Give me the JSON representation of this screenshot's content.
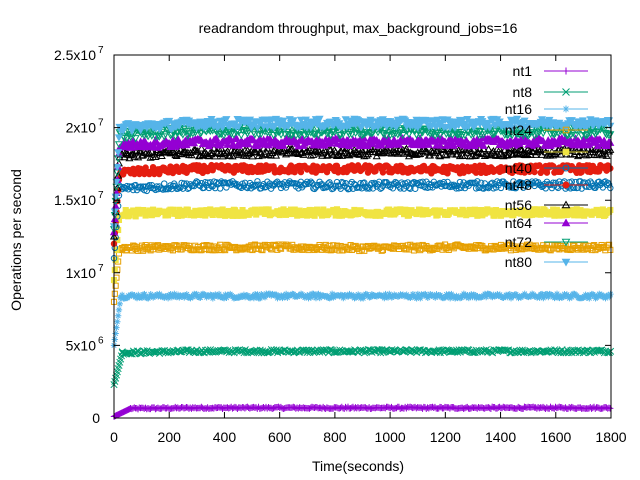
{
  "chart_data": {
    "type": "scatter",
    "title": "readrandom throughput, max_background_jobs=16",
    "xlabel": "Time(seconds)",
    "ylabel": "Operations per second",
    "xlim": [
      0,
      1800
    ],
    "ylim": [
      0,
      25000000
    ],
    "x_ticks": [
      {
        "value": 0,
        "label": "0"
      },
      {
        "value": 200,
        "label": "200"
      },
      {
        "value": 400,
        "label": "400"
      },
      {
        "value": 600,
        "label": "600"
      },
      {
        "value": 800,
        "label": "800"
      },
      {
        "value": 1000,
        "label": "1000"
      },
      {
        "value": 1200,
        "label": "1200"
      },
      {
        "value": 1400,
        "label": "1400"
      },
      {
        "value": 1600,
        "label": "1600"
      },
      {
        "value": 1800,
        "label": "1800"
      }
    ],
    "y_ticks": [
      {
        "value": 0,
        "base": "0",
        "exp": ""
      },
      {
        "value": 5000000,
        "base": "5x10",
        "exp": "6"
      },
      {
        "value": 10000000,
        "base": "1x10",
        "exp": "7"
      },
      {
        "value": 15000000,
        "base": "1.5x10",
        "exp": "7"
      },
      {
        "value": 20000000,
        "base": "2x10",
        "exp": "7"
      },
      {
        "value": 25000000,
        "base": "2.5x10",
        "exp": "7"
      }
    ],
    "grid": false,
    "legend_position": "top-right",
    "series": [
      {
        "name": "nt1",
        "color": "#9400d3",
        "marker": "plus",
        "steady": 700000,
        "ramp_end": 60,
        "x": [
          0,
          60,
          300,
          600,
          900,
          1200,
          1500,
          1800
        ],
        "y": [
          100000,
          650000,
          700000,
          700000,
          700000,
          700000,
          700000,
          700000
        ]
      },
      {
        "name": "nt8",
        "color": "#009e73",
        "marker": "x",
        "steady": 4600000,
        "ramp_end": 30,
        "x": [
          0,
          30,
          300,
          600,
          900,
          1200,
          1500,
          1800
        ],
        "y": [
          2300000,
          4500000,
          4600000,
          4600000,
          4600000,
          4600000,
          4600000,
          4600000
        ]
      },
      {
        "name": "nt16",
        "color": "#56b4e9",
        "marker": "star",
        "steady": 8400000,
        "ramp_end": 25,
        "x": [
          0,
          25,
          300,
          600,
          900,
          1200,
          1500,
          1800
        ],
        "y": [
          5000000,
          8400000,
          8400000,
          8400000,
          8400000,
          8400000,
          8400000,
          8400000
        ]
      },
      {
        "name": "nt24",
        "color": "#e69f00",
        "marker": "square",
        "steady": 11750000,
        "ramp_end": 20,
        "x": [
          0,
          20,
          300,
          600,
          900,
          1200,
          1500,
          1800
        ],
        "y": [
          8000000,
          11700000,
          11750000,
          11750000,
          11700000,
          11750000,
          11750000,
          11750000
        ]
      },
      {
        "name": "nt32",
        "color": "#f0e442",
        "marker": "square-filled",
        "steady": 14150000,
        "ramp_end": 20,
        "x": [
          0,
          20,
          300,
          600,
          900,
          1200,
          1500,
          1800
        ],
        "y": [
          9500000,
          14100000,
          14150000,
          14150000,
          14150000,
          14150000,
          14150000,
          14150000
        ]
      },
      {
        "name": "nt40",
        "color": "#0072b2",
        "marker": "circle",
        "steady": 16050000,
        "ramp_end": 20,
        "x": [
          0,
          20,
          300,
          600,
          900,
          1200,
          1500,
          1800
        ],
        "y": [
          11000000,
          15800000,
          16050000,
          16050000,
          16000000,
          16050000,
          16050000,
          16050000
        ]
      },
      {
        "name": "nt48",
        "color": "#e51e10",
        "marker": "circle-filled",
        "steady": 17150000,
        "ramp_end": 20,
        "x": [
          0,
          20,
          300,
          600,
          900,
          1200,
          1500,
          1800
        ],
        "y": [
          12000000,
          16900000,
          17150000,
          17150000,
          17150000,
          17100000,
          17150000,
          17150000
        ]
      },
      {
        "name": "nt56",
        "color": "#000000",
        "marker": "triangle",
        "steady": 18300000,
        "ramp_end": 20,
        "x": [
          0,
          20,
          300,
          600,
          900,
          1200,
          1500,
          1800
        ],
        "y": [
          12500000,
          18100000,
          18300000,
          18300000,
          18300000,
          18300000,
          18300000,
          18300000
        ]
      },
      {
        "name": "nt64",
        "color": "#9400d3",
        "marker": "triangle-filled",
        "steady": 19000000,
        "ramp_end": 20,
        "x": [
          0,
          20,
          300,
          600,
          900,
          1200,
          1500,
          1800
        ],
        "y": [
          12800000,
          18800000,
          19000000,
          19000000,
          19000000,
          19000000,
          19000000,
          19000000
        ]
      },
      {
        "name": "nt72",
        "color": "#009e73",
        "marker": "triangle-down",
        "steady": 19750000,
        "ramp_end": 20,
        "x": [
          0,
          20,
          300,
          600,
          900,
          1200,
          1500,
          1800
        ],
        "y": [
          13000000,
          19500000,
          19750000,
          19750000,
          19750000,
          19750000,
          19750000,
          19750000
        ]
      },
      {
        "name": "nt80",
        "color": "#56b4e9",
        "marker": "triangle-down-filled",
        "steady": 20300000,
        "ramp_end": 20,
        "x": [
          0,
          20,
          300,
          600,
          900,
          1200,
          1500,
          1800
        ],
        "y": [
          13200000,
          20000000,
          20300000,
          20300000,
          20300000,
          20300000,
          20300000,
          20300000
        ]
      }
    ]
  }
}
